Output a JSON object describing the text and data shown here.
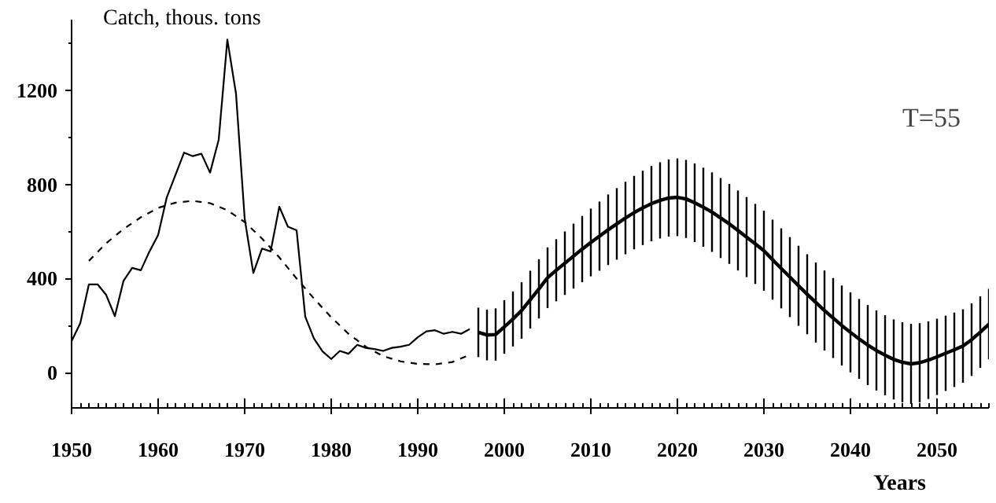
{
  "chart_data": {
    "type": "line",
    "ylabel": "Catch, thous. tons",
    "xlabel": "Years",
    "annotations": [
      "T=55"
    ],
    "xlim": [
      1950,
      2056
    ],
    "ylim": [
      -150,
      1500
    ],
    "xticks": [
      1950,
      1960,
      1970,
      1980,
      1990,
      2000,
      2010,
      2020,
      2030,
      2040,
      2050
    ],
    "yticks": [
      0,
      400,
      800,
      1200
    ],
    "grid": false,
    "marker": "none",
    "series": [
      {
        "color": "#000000",
        "line_style": "solid",
        "x": [
          1950,
          1951,
          1952,
          1953,
          1954,
          1955,
          1956,
          1957,
          1958,
          1959,
          1960,
          1961,
          1962,
          1963,
          1964,
          1965,
          1966,
          1967,
          1968,
          1969,
          1970,
          1971,
          1972,
          1973,
          1974,
          1975,
          1976,
          1977,
          1978,
          1979,
          1980,
          1981,
          1982,
          1983,
          1984,
          1985,
          1986,
          1987,
          1988,
          1989,
          1990,
          1991,
          1992,
          1993,
          1994,
          1995,
          1996
        ],
        "values": [
          134,
          210,
          375,
          375,
          330,
          240,
          390,
          445,
          435,
          515,
          585,
          745,
          840,
          935,
          920,
          930,
          850,
          990,
          1415,
          1185,
          655,
          423,
          527,
          515,
          705,
          620,
          605,
          238,
          145,
          90,
          58,
          92,
          80,
          118,
          105,
          100,
          92,
          105,
          110,
          118,
          150,
          175,
          180,
          165,
          173,
          165,
          185
        ]
      },
      {
        "color": "#000000",
        "line_style": "dashed",
        "x": [
          1952,
          1954,
          1956,
          1958,
          1960,
          1962,
          1964,
          1966,
          1968,
          1970,
          1972,
          1974,
          1976,
          1978,
          1980,
          1982,
          1984,
          1986,
          1988,
          1990,
          1992,
          1994,
          1996
        ],
        "values": [
          475,
          550,
          610,
          660,
          700,
          722,
          730,
          720,
          690,
          640,
          570,
          490,
          400,
          315,
          235,
          165,
          110,
          70,
          48,
          37,
          35,
          45,
          75
        ]
      },
      {
        "color": "#000000",
        "line_style": "solid",
        "x": [
          1997,
          1998,
          1999,
          2000,
          2001,
          2002,
          2003,
          2004,
          2005,
          2006,
          2007,
          2008,
          2009,
          2010,
          2011,
          2012,
          2013,
          2014,
          2015,
          2016,
          2017,
          2018,
          2019,
          2020,
          2021,
          2022,
          2023,
          2024,
          2025,
          2026,
          2027,
          2028,
          2029,
          2030,
          2031,
          2032,
          2033,
          2034,
          2035,
          2036,
          2037,
          2038,
          2039,
          2040,
          2041,
          2042,
          2043,
          2044,
          2045,
          2046,
          2047,
          2048,
          2049,
          2050,
          2051,
          2052,
          2053,
          2054,
          2055,
          2056
        ],
        "values": [
          171,
          160,
          162,
          194,
          228,
          264,
          310,
          356,
          403,
          435,
          465,
          495,
          525,
          553,
          580,
          607,
          632,
          657,
          680,
          700,
          718,
          732,
          742,
          745,
          738,
          722,
          703,
          682,
          657,
          632,
          604,
          576,
          547,
          518,
          480,
          443,
          406,
          369,
          333,
          298,
          264,
          232,
          200,
          171,
          143,
          117,
          94,
          74,
          56,
          44,
          37,
          42,
          53,
          67,
          82,
          97,
          113,
          140,
          172,
          206
        ],
        "errors": [
          105,
          108,
          111,
          114,
          117,
          120,
          123,
          126,
          129,
          132,
          135,
          138,
          141,
          144,
          147,
          150,
          152,
          154,
          156,
          158,
          160,
          162,
          164,
          165,
          166,
          167,
          168,
          169,
          170,
          170,
          170,
          170,
          170,
          170,
          170,
          170,
          170,
          170,
          170,
          170,
          170,
          170,
          170,
          170,
          170,
          170,
          170,
          170,
          170,
          170,
          170,
          168,
          165,
          162,
          160,
          158,
          156,
          154,
          152,
          150
        ]
      }
    ]
  }
}
